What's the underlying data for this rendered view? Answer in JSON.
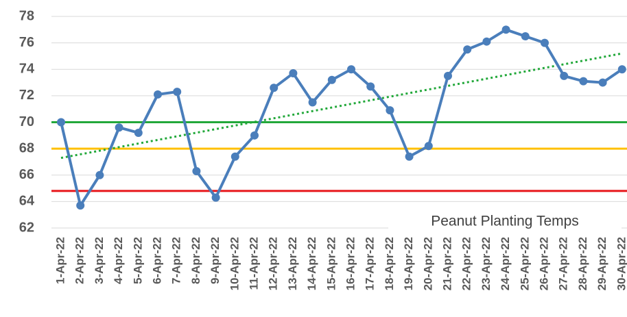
{
  "chart_data": {
    "type": "line",
    "title": "Peanut Planting Temps",
    "categories": [
      "1-Apr-22",
      "2-Apr-22",
      "3-Apr-22",
      "4-Apr-22",
      "5-Apr-22",
      "6-Apr-22",
      "7-Apr-22",
      "8-Apr-22",
      "9-Apr-22",
      "10-Apr-22",
      "11-Apr-22",
      "12-Apr-22",
      "13-Apr-22",
      "14-Apr-22",
      "15-Apr-22",
      "16-Apr-22",
      "17-Apr-22",
      "18-Apr-22",
      "19-Apr-22",
      "20-Apr-22",
      "21-Apr-22",
      "22-Apr-22",
      "23-Apr-22",
      "24-Apr-22",
      "25-Apr-22",
      "26-Apr-22",
      "27-Apr-22",
      "28-Apr-22",
      "29-Apr-22",
      "30-Apr-22"
    ],
    "series": [
      {
        "color": "#4a7ebb",
        "values": [
          70.0,
          63.7,
          66.0,
          69.6,
          69.2,
          72.1,
          72.3,
          66.3,
          64.3,
          67.4,
          69.0,
          72.6,
          73.7,
          71.5,
          73.2,
          74.0,
          72.7,
          70.9,
          67.4,
          68.2,
          73.5,
          75.5,
          76.1,
          77.0,
          76.5,
          76.0,
          73.5,
          73.1,
          73.0,
          74.0
        ]
      }
    ],
    "reference_lines": [
      {
        "value": 70,
        "color": "#22a83a"
      },
      {
        "value": 68,
        "color": "#ffc000"
      },
      {
        "value": 64.8,
        "color": "#e8161a"
      }
    ],
    "trendline": {
      "color": "#22a83a",
      "values": [
        67.3,
        75.2
      ]
    },
    "ylim": [
      62,
      78
    ],
    "yticks": [
      62,
      64,
      66,
      68,
      70,
      72,
      74,
      76,
      78
    ],
    "grid": true
  }
}
